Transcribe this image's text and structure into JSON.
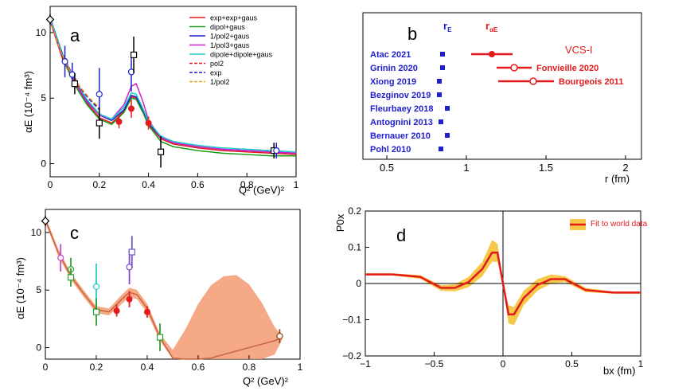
{
  "chart_data": [
    {
      "type": "line",
      "panel": "a",
      "xlabel": "Q² (GeV)²",
      "ylabel": "αE (10⁻⁴ fm³)",
      "xlim": [
        0,
        1
      ],
      "ylim": [
        -1,
        12
      ],
      "xticks": [
        "0",
        "0.2",
        "0.4",
        "0.6",
        "0.8",
        "1"
      ],
      "yticks": [
        "0",
        "5",
        "10"
      ],
      "legend_position": "top-right",
      "series": [
        {
          "name": "exp+exp+gaus",
          "color": "#e41a1c",
          "dash": "solid",
          "x": [
            0,
            0.05,
            0.1,
            0.15,
            0.2,
            0.25,
            0.3,
            0.33,
            0.35,
            0.38,
            0.4,
            0.45,
            0.5,
            0.6,
            0.7,
            0.8,
            0.9,
            1.0
          ],
          "y": [
            10.9,
            8.0,
            6.1,
            4.6,
            3.5,
            3.1,
            4.0,
            5.1,
            5.0,
            3.9,
            3.0,
            1.9,
            1.5,
            1.2,
            1.0,
            0.9,
            0.8,
            0.7
          ]
        },
        {
          "name": "dipol+gaus",
          "color": "#1a9e1a",
          "dash": "solid",
          "x": [
            0,
            0.05,
            0.1,
            0.15,
            0.2,
            0.25,
            0.3,
            0.33,
            0.35,
            0.38,
            0.4,
            0.45,
            0.5,
            0.6,
            0.7,
            0.8,
            0.9,
            1.0
          ],
          "y": [
            11.0,
            8.1,
            6.0,
            4.5,
            3.4,
            3.0,
            3.9,
            5.0,
            4.9,
            3.8,
            2.9,
            1.7,
            1.3,
            1.0,
            0.8,
            0.7,
            0.6,
            0.6
          ]
        },
        {
          "name": "1/pol2+gaus",
          "color": "#1f1fd0",
          "dash": "solid",
          "x": [
            0,
            0.05,
            0.1,
            0.15,
            0.2,
            0.25,
            0.3,
            0.33,
            0.35,
            0.38,
            0.4,
            0.45,
            0.5,
            0.6,
            0.7,
            0.8,
            0.9,
            1.0
          ],
          "y": [
            11.1,
            8.3,
            6.3,
            4.8,
            3.7,
            3.3,
            4.1,
            5.2,
            5.1,
            4.0,
            3.1,
            2.0,
            1.6,
            1.3,
            1.1,
            1.0,
            0.9,
            0.8
          ]
        },
        {
          "name": "1/pol3+gaus",
          "color": "#cc22cc",
          "dash": "solid",
          "x": [
            0,
            0.05,
            0.1,
            0.15,
            0.2,
            0.25,
            0.3,
            0.33,
            0.35,
            0.38,
            0.4,
            0.45,
            0.5,
            0.6,
            0.7,
            0.8,
            0.9,
            1.0
          ],
          "y": [
            11.0,
            8.2,
            6.2,
            4.7,
            3.7,
            3.4,
            4.5,
            5.9,
            6.1,
            4.6,
            3.3,
            2.0,
            1.6,
            1.3,
            1.1,
            1.0,
            0.9,
            0.8
          ]
        },
        {
          "name": "dipole+dipole+gaus",
          "color": "#22cccc",
          "dash": "solid",
          "x": [
            0,
            0.05,
            0.1,
            0.15,
            0.2,
            0.25,
            0.3,
            0.33,
            0.35,
            0.38,
            0.4,
            0.45,
            0.5,
            0.6,
            0.7,
            0.8,
            0.9,
            1.0
          ],
          "y": [
            11.2,
            8.4,
            6.4,
            4.9,
            3.8,
            3.4,
            4.3,
            5.4,
            5.3,
            4.1,
            3.2,
            2.1,
            1.7,
            1.4,
            1.2,
            1.1,
            1.0,
            0.9
          ]
        },
        {
          "name": "pol2",
          "color": "#e41a1c",
          "dash": "dashed",
          "x": [
            0,
            0.04,
            0.08,
            0.12,
            0.16,
            0.2
          ],
          "y": [
            11.0,
            8.6,
            7.0,
            5.8,
            4.9,
            4.2
          ]
        },
        {
          "name": "exp",
          "color": "#1f1fd0",
          "dash": "dashed",
          "x": [
            0,
            0.04,
            0.08,
            0.12,
            0.16,
            0.2
          ],
          "y": [
            11.0,
            8.8,
            7.2,
            5.9,
            4.9,
            4.1
          ]
        },
        {
          "name": "1/pol2",
          "color": "#e8a020",
          "dash": "dashed",
          "x": [
            0,
            0.04,
            0.08,
            0.12,
            0.16,
            0.2
          ],
          "y": [
            11.0,
            8.7,
            7.1,
            5.9,
            5.0,
            4.3
          ]
        }
      ],
      "points": [
        {
          "x": 0.0,
          "y": 11.0,
          "err": 0.4,
          "marker": "open-diamond",
          "color": "#000000"
        },
        {
          "x": 0.06,
          "y": 7.8,
          "err": 1.2,
          "marker": "open-circle",
          "color": "#1f1fd0"
        },
        {
          "x": 0.09,
          "y": 6.8,
          "err": 0.9,
          "marker": "open-circle",
          "color": "#1f1fd0"
        },
        {
          "x": 0.1,
          "y": 6.1,
          "err": 0.8,
          "marker": "open-square",
          "color": "#000000"
        },
        {
          "x": 0.2,
          "y": 5.3,
          "err": 2.0,
          "marker": "open-circle",
          "color": "#1f1fd0"
        },
        {
          "x": 0.2,
          "y": 3.1,
          "err": 1.2,
          "marker": "open-square",
          "color": "#000000"
        },
        {
          "x": 0.28,
          "y": 3.2,
          "err": 0.5,
          "marker": "filled-circle",
          "color": "#e41a1c"
        },
        {
          "x": 0.33,
          "y": 4.2,
          "err": 0.7,
          "marker": "filled-circle",
          "color": "#e41a1c"
        },
        {
          "x": 0.33,
          "y": 7.0,
          "err": 1.5,
          "marker": "open-circle",
          "color": "#1f1fd0"
        },
        {
          "x": 0.34,
          "y": 8.3,
          "err": 1.4,
          "marker": "open-square",
          "color": "#000000"
        },
        {
          "x": 0.4,
          "y": 3.1,
          "err": 0.5,
          "marker": "filled-circle",
          "color": "#e41a1c"
        },
        {
          "x": 0.45,
          "y": 0.9,
          "err": 1.2,
          "marker": "open-square",
          "color": "#000000"
        },
        {
          "x": 0.91,
          "y": 1.0,
          "err": 0.6,
          "marker": "open-square",
          "color": "#000000"
        },
        {
          "x": 0.92,
          "y": 1.0,
          "err": 0.6,
          "marker": "open-circle",
          "color": "#1f1fd0"
        }
      ]
    },
    {
      "type": "scatter",
      "panel": "b",
      "xlabel": "r (fm)",
      "xlim": [
        0.35,
        2.1
      ],
      "xticks": [
        "0.5",
        "1",
        "1.5",
        "2"
      ],
      "header_rE": "r",
      "header_rE_sub": "E",
      "header_ra": "r",
      "header_ra_sub": "αE",
      "rE_color": "#1f1fd0",
      "ra_color": "#e41a1c",
      "rE_points": [
        {
          "label": "Atac 2021",
          "r": 0.85
        },
        {
          "label": "Grinin 2020",
          "r": 0.85
        },
        {
          "label": "Xiong 2019",
          "r": 0.83
        },
        {
          "label": "Bezginov 2019",
          "r": 0.83
        },
        {
          "label": "Fleurbaey 2018",
          "r": 0.88
        },
        {
          "label": "Antognini 2013",
          "r": 0.84
        },
        {
          "label": "Bernauer 2010",
          "r": 0.88
        },
        {
          "label": "Pohl 2010",
          "r": 0.84
        }
      ],
      "ra_points": [
        {
          "label": "VCS-I",
          "r": 1.16,
          "lo": 1.03,
          "hi": 1.29,
          "marker": "filled-circle"
        },
        {
          "label": "Fonvieille 2020",
          "r": 1.3,
          "lo": 1.19,
          "hi": 1.41,
          "marker": "open-circle"
        },
        {
          "label": "Bourgeois 2011",
          "r": 1.42,
          "lo": 1.2,
          "hi": 1.55,
          "marker": "open-circle"
        }
      ]
    },
    {
      "type": "area",
      "panel": "c",
      "xlabel": "Q² (GeV)²",
      "ylabel": "αE (10⁻⁴ fm³)",
      "xlim": [
        0,
        1
      ],
      "ylim": [
        -1,
        12
      ],
      "xticks": [
        "0",
        "0.2",
        "0.4",
        "0.6",
        "0.8",
        "1"
      ],
      "yticks": [
        "0",
        "5",
        "10"
      ],
      "band_color": "#f39a72",
      "line_color": "#c86440",
      "x": [
        0,
        0.05,
        0.1,
        0.15,
        0.2,
        0.25,
        0.3,
        0.33,
        0.36,
        0.4,
        0.45,
        0.5,
        0.55,
        0.6,
        0.65,
        0.7,
        0.75,
        0.8,
        0.85,
        0.9,
        0.93
      ],
      "central": [
        11.1,
        8.3,
        6.2,
        4.7,
        3.3,
        3.1,
        4.2,
        4.8,
        4.6,
        3.4,
        0.9,
        -0.9,
        -1.0,
        -1.0,
        -0.9,
        -0.6,
        -0.3,
        0.0,
        0.3,
        0.6,
        0.9
      ],
      "upper": [
        11.4,
        8.6,
        6.5,
        5.0,
        3.6,
        3.4,
        4.6,
        5.2,
        5.0,
        3.8,
        1.2,
        -0.2,
        1.6,
        3.8,
        5.4,
        6.2,
        6.3,
        5.5,
        3.9,
        1.8,
        1.0
      ],
      "lower": [
        10.8,
        8.0,
        5.9,
        4.4,
        3.0,
        2.8,
        3.8,
        4.4,
        4.2,
        3.0,
        0.6,
        -1.0,
        -1.0,
        -1.0,
        -1.0,
        -1.0,
        -1.0,
        -1.0,
        -1.0,
        -0.6,
        0.7
      ],
      "points": [
        {
          "x": 0.0,
          "y": 11.0,
          "err": 0.4,
          "marker": "open-diamond",
          "color": "#000000"
        },
        {
          "x": 0.06,
          "y": 7.8,
          "err": 1.2,
          "marker": "open-circle",
          "color": "#cc44cc"
        },
        {
          "x": 0.1,
          "y": 6.8,
          "err": 1.0,
          "marker": "open-circle",
          "color": "#2ca02c"
        },
        {
          "x": 0.1,
          "y": 6.1,
          "err": 0.8,
          "marker": "open-square",
          "color": "#2ca02c"
        },
        {
          "x": 0.2,
          "y": 5.3,
          "err": 2.0,
          "marker": "open-circle",
          "color": "#22cccc"
        },
        {
          "x": 0.2,
          "y": 3.1,
          "err": 1.2,
          "marker": "open-square",
          "color": "#2ca02c"
        },
        {
          "x": 0.28,
          "y": 3.2,
          "err": 0.5,
          "marker": "filled-circle",
          "color": "#e41a1c"
        },
        {
          "x": 0.33,
          "y": 4.2,
          "err": 0.7,
          "marker": "filled-circle",
          "color": "#e41a1c"
        },
        {
          "x": 0.33,
          "y": 7.0,
          "err": 1.5,
          "marker": "open-circle",
          "color": "#8844cc"
        },
        {
          "x": 0.34,
          "y": 8.3,
          "err": 1.4,
          "marker": "open-square",
          "color": "#6a5acd"
        },
        {
          "x": 0.4,
          "y": 3.1,
          "err": 0.5,
          "marker": "filled-circle",
          "color": "#e41a1c"
        },
        {
          "x": 0.45,
          "y": 0.9,
          "err": 1.2,
          "marker": "open-square",
          "color": "#2ca02c"
        },
        {
          "x": 0.92,
          "y": 1.0,
          "err": 0.6,
          "marker": "open-circle",
          "color": "#8b4513"
        }
      ]
    },
    {
      "type": "area",
      "panel": "d",
      "xlabel": "bx (fm)",
      "ylabel": "P0x",
      "xlim": [
        -1,
        1
      ],
      "ylim": [
        -0.2,
        0.2
      ],
      "xticks": [
        "−1",
        "−0.5",
        "0",
        "0.5",
        "1"
      ],
      "yticks": [
        "−0.2",
        "−0.1",
        "0",
        "0.1",
        "0.2"
      ],
      "legend": "Fit to world data",
      "legend_position": "top-right",
      "line_color": "#e41a1c",
      "band_color": "#f7c84a",
      "x": [
        -1,
        -0.8,
        -0.6,
        -0.45,
        -0.35,
        -0.25,
        -0.15,
        -0.08,
        -0.04,
        -0.01,
        0.01,
        0.04,
        0.08,
        0.15,
        0.25,
        0.35,
        0.45,
        0.6,
        0.8,
        1.0
      ],
      "y": [
        0.025,
        0.025,
        0.018,
        -0.012,
        -0.012,
        0.004,
        0.04,
        0.085,
        0.085,
        0.02,
        -0.02,
        -0.085,
        -0.085,
        -0.04,
        -0.004,
        0.012,
        0.012,
        -0.018,
        -0.025,
        -0.025
      ],
      "upper": [
        0.028,
        0.028,
        0.023,
        -0.005,
        -0.002,
        0.018,
        0.06,
        0.12,
        0.11,
        0.03,
        -0.01,
        -0.06,
        -0.065,
        -0.02,
        0.012,
        0.025,
        0.02,
        -0.012,
        -0.022,
        -0.022
      ],
      "lower": [
        0.022,
        0.022,
        0.013,
        -0.02,
        -0.022,
        -0.01,
        0.02,
        0.06,
        0.06,
        0.01,
        -0.03,
        -0.11,
        -0.115,
        -0.06,
        -0.02,
        0.0,
        0.004,
        -0.024,
        -0.028,
        -0.028
      ]
    }
  ],
  "panel_labels": {
    "a": "a",
    "b": "b",
    "c": "c",
    "d": "d"
  },
  "legend_labels_a": [
    "exp+exp+gaus",
    "dipol+gaus",
    "1/pol2+gaus",
    "1/pol3+gaus",
    "dipole+dipole+gaus",
    "pol2",
    "exp",
    "1/pol2"
  ]
}
